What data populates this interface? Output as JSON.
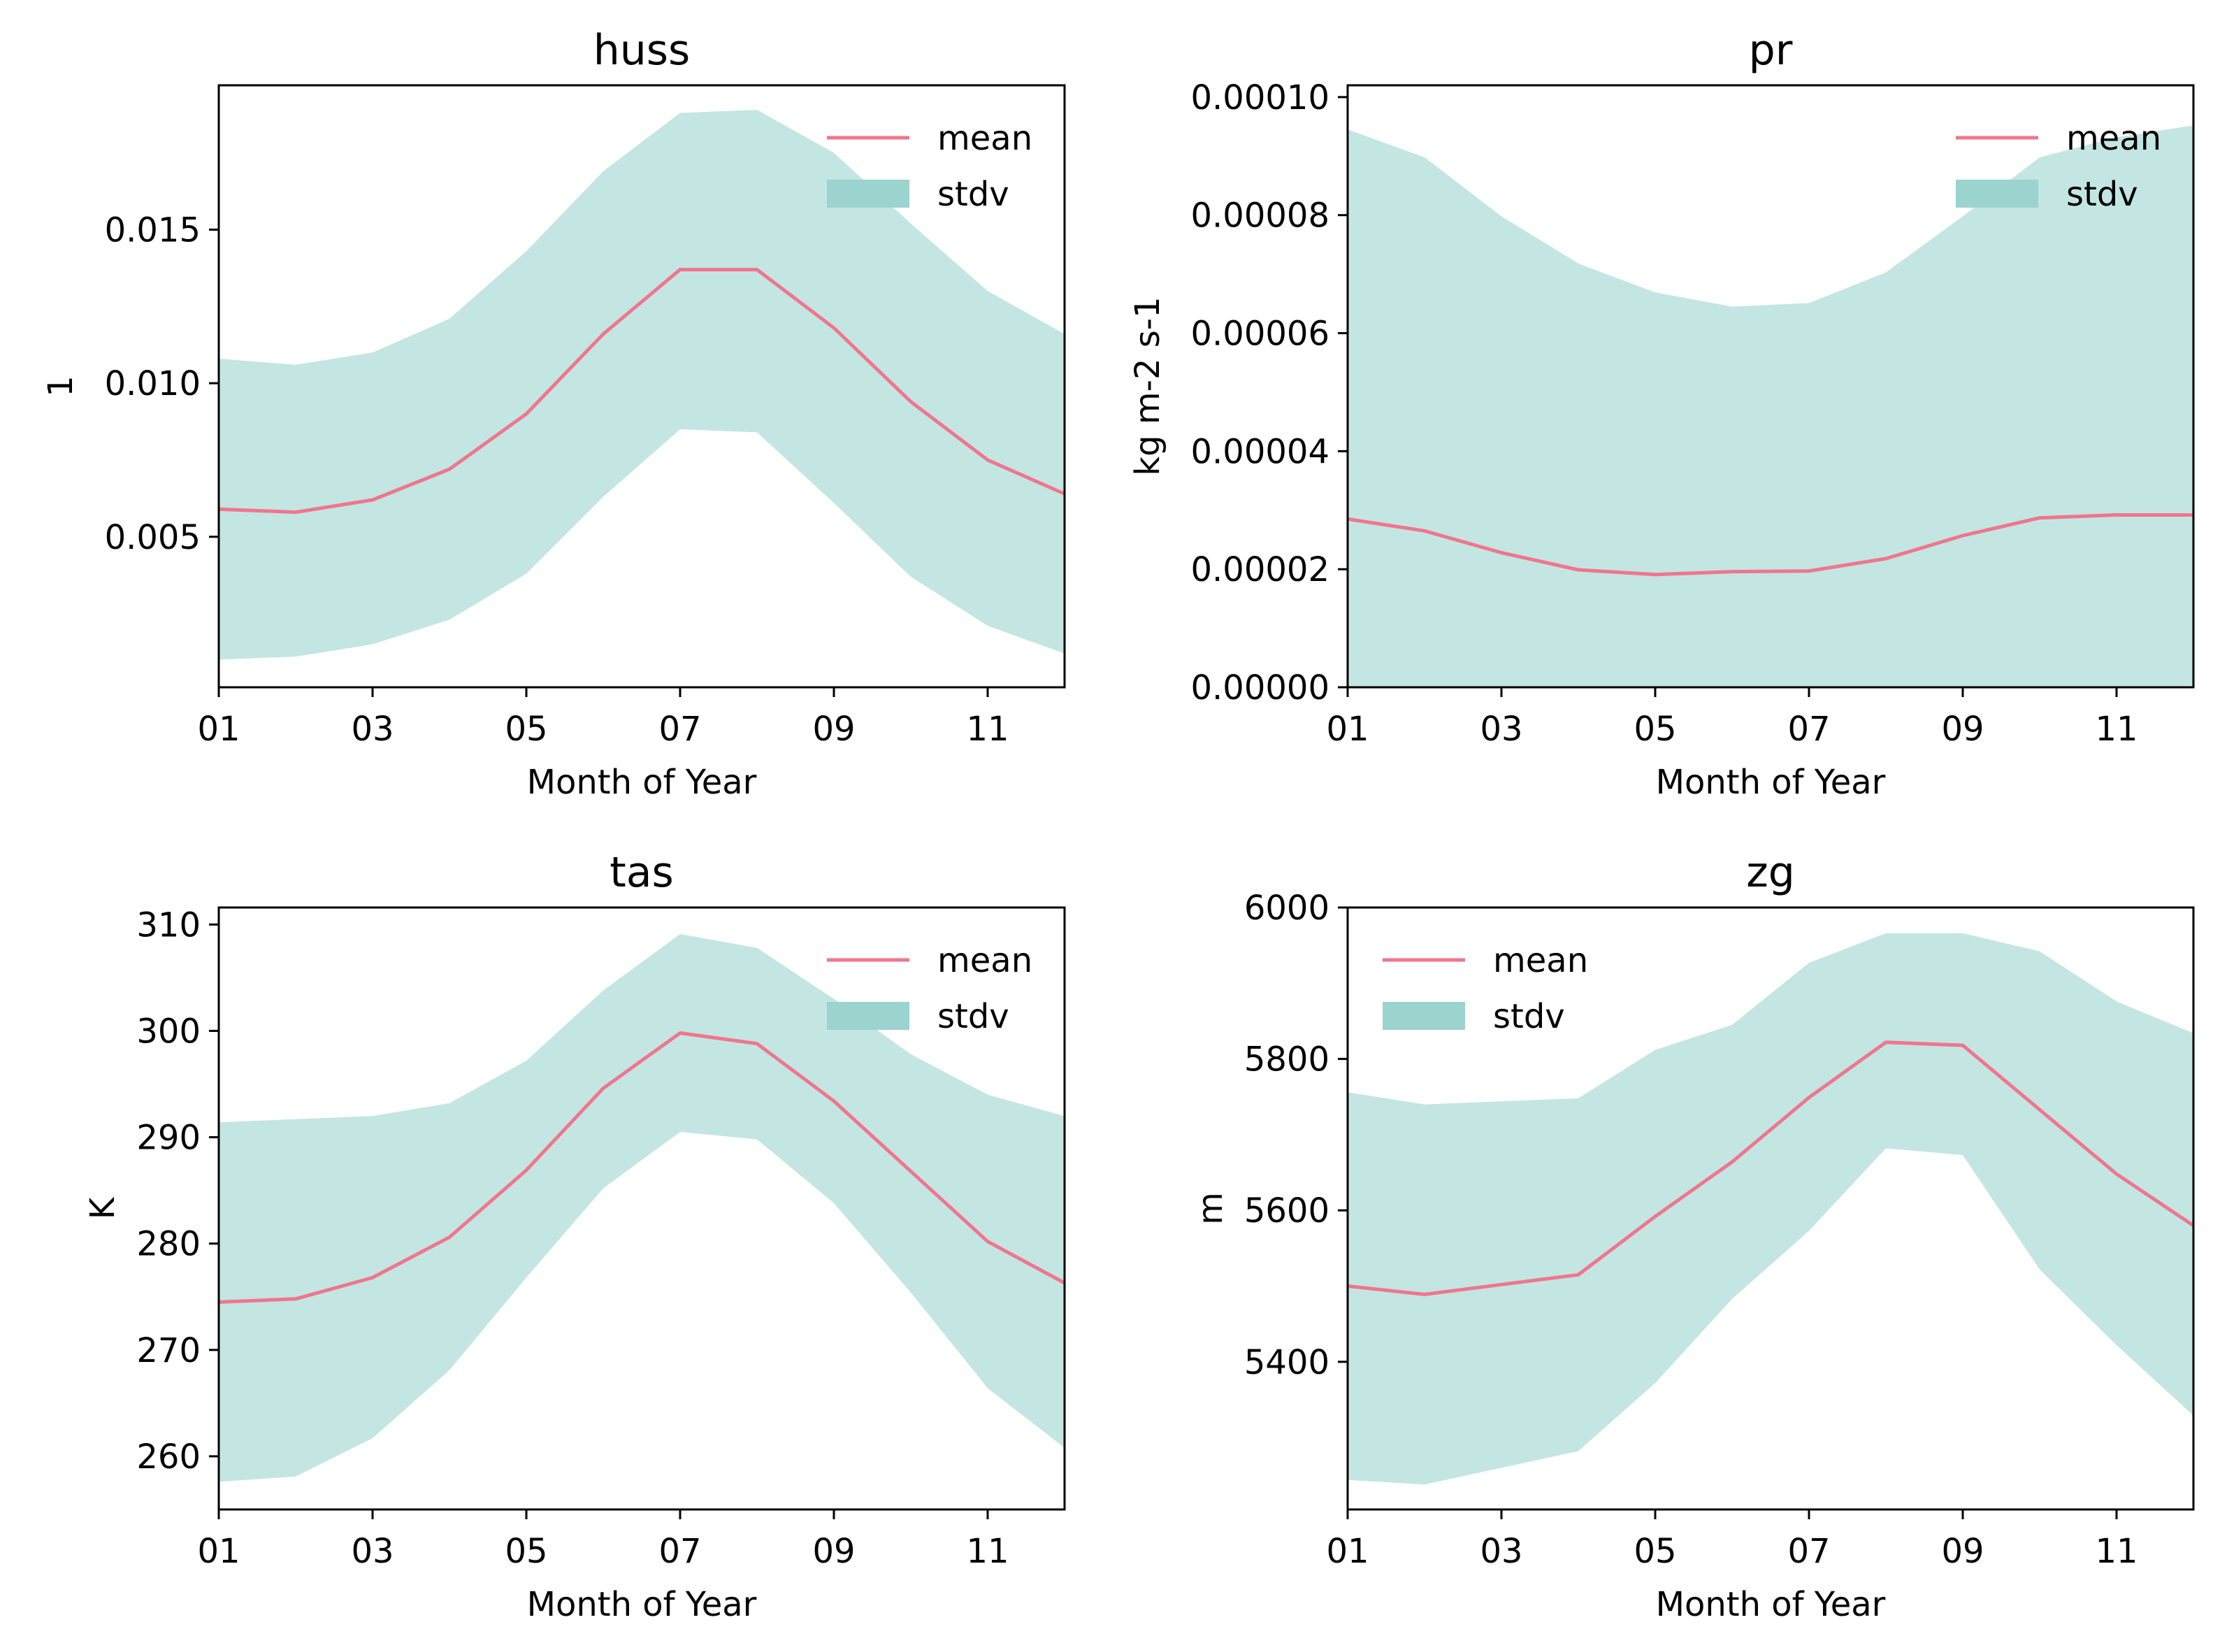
{
  "figure": {
    "background": "#ffffff",
    "mean_color": "#f0768c",
    "stdv_color": "#c3e6e3",
    "stdv_legend_color": "#9bd3ce"
  },
  "chart_data": [
    {
      "type": "area",
      "id": "huss",
      "title": "huss",
      "xlabel": "Month of Year",
      "ylabel": "1",
      "x": [
        1,
        2,
        3,
        4,
        5,
        6,
        7,
        8,
        9,
        10,
        11,
        12
      ],
      "xlim": [
        1,
        12
      ],
      "xticks": [
        1,
        3,
        5,
        7,
        9,
        11
      ],
      "xtick_labels": [
        "01",
        "03",
        "05",
        "07",
        "09",
        "11"
      ],
      "ylim": [
        0.0001,
        0.0197
      ],
      "yticks": [
        0.005,
        0.01,
        0.015
      ],
      "ytick_labels": [
        "0.005",
        "0.010",
        "0.015"
      ],
      "legend_position": "top-right",
      "series": [
        {
          "name": "mean",
          "kind": "line",
          "values": [
            0.0059,
            0.0058,
            0.0062,
            0.0072,
            0.009,
            0.0116,
            0.0137,
            0.0137,
            0.0118,
            0.0094,
            0.0075,
            0.0064
          ]
        },
        {
          "name": "stdv",
          "kind": "band",
          "upper": [
            0.0108,
            0.0106,
            0.011,
            0.0121,
            0.0143,
            0.0169,
            0.0188,
            0.0189,
            0.0175,
            0.0152,
            0.013,
            0.0116
          ],
          "lower": [
            0.001,
            0.0011,
            0.0015,
            0.0023,
            0.0038,
            0.0063,
            0.0085,
            0.0084,
            0.0061,
            0.0037,
            0.0021,
            0.0012
          ]
        }
      ],
      "legend": [
        "mean",
        "stdv"
      ]
    },
    {
      "type": "area",
      "id": "pr",
      "title": "pr",
      "xlabel": "Month of Year",
      "ylabel": "kg m-2 s-1",
      "x": [
        1,
        2,
        3,
        4,
        5,
        6,
        7,
        8,
        9,
        10,
        11,
        12
      ],
      "xlim": [
        1,
        12
      ],
      "xticks": [
        1,
        3,
        5,
        7,
        9,
        11
      ],
      "xtick_labels": [
        "01",
        "03",
        "05",
        "07",
        "09",
        "11"
      ],
      "ylim": [
        0,
        0.000102
      ],
      "yticks": [
        0,
        2e-05,
        4e-05,
        6e-05,
        8e-05,
        0.0001
      ],
      "ytick_labels": [
        "0.00000",
        "0.00002",
        "0.00004",
        "0.00006",
        "0.00008",
        "0.00010"
      ],
      "legend_position": "top-right",
      "series": [
        {
          "name": "mean",
          "kind": "line",
          "values": [
            2.85e-05,
            2.65e-05,
            2.28e-05,
            1.99e-05,
            1.91e-05,
            1.96e-05,
            1.97e-05,
            2.18e-05,
            2.57e-05,
            2.87e-05,
            2.92e-05,
            2.92e-05
          ]
        },
        {
          "name": "stdv",
          "kind": "band",
          "upper": [
            9.45e-05,
            8.98e-05,
            7.98e-05,
            7.18e-05,
            6.69e-05,
            6.45e-05,
            6.51e-05,
            7.03e-05,
            7.98e-05,
            8.98e-05,
            9.32e-05,
            9.52e-05
          ],
          "lower": [
            0,
            0,
            0,
            0,
            0,
            0,
            0,
            0,
            0,
            0,
            0,
            0
          ]
        }
      ],
      "legend": [
        "mean",
        "stdv"
      ]
    },
    {
      "type": "area",
      "id": "tas",
      "title": "tas",
      "xlabel": "Month of Year",
      "ylabel": "K",
      "x": [
        1,
        2,
        3,
        4,
        5,
        6,
        7,
        8,
        9,
        10,
        11,
        12
      ],
      "xlim": [
        1,
        12
      ],
      "xticks": [
        1,
        3,
        5,
        7,
        9,
        11
      ],
      "xtick_labels": [
        "01",
        "03",
        "05",
        "07",
        "09",
        "11"
      ],
      "ylim": [
        255,
        311.6
      ],
      "yticks": [
        260,
        270,
        280,
        290,
        300,
        310
      ],
      "ytick_labels": [
        "260",
        "270",
        "280",
        "290",
        "300",
        "310"
      ],
      "legend_position": "top-right",
      "series": [
        {
          "name": "mean",
          "kind": "line",
          "values": [
            274.5,
            274.8,
            276.8,
            280.6,
            286.9,
            294.6,
            299.8,
            298.8,
            293.4,
            286.8,
            280.2,
            276.3
          ]
        },
        {
          "name": "stdv",
          "kind": "band",
          "upper": [
            291.4,
            291.7,
            292.0,
            293.2,
            297.2,
            303.8,
            309.1,
            307.8,
            303.0,
            297.8,
            294.0,
            292.0
          ],
          "lower": [
            257.6,
            258.1,
            261.7,
            268.1,
            276.8,
            285.2,
            290.5,
            289.8,
            283.8,
            275.4,
            266.4,
            260.8
          ]
        }
      ],
      "legend": [
        "mean",
        "stdv"
      ]
    },
    {
      "type": "area",
      "id": "zg",
      "title": "zg",
      "xlabel": "Month of Year",
      "ylabel": "m",
      "x": [
        1,
        2,
        3,
        4,
        5,
        6,
        7,
        8,
        9,
        10,
        11,
        12
      ],
      "xlim": [
        1,
        12
      ],
      "xticks": [
        1,
        3,
        5,
        7,
        9,
        11
      ],
      "xtick_labels": [
        "01",
        "03",
        "05",
        "07",
        "09",
        "11"
      ],
      "ylim": [
        5205,
        6000
      ],
      "yticks": [
        5400,
        5600,
        5800,
        6000
      ],
      "ytick_labels": [
        "5400",
        "5600",
        "5800",
        "6000"
      ],
      "legend_position": "top-left",
      "series": [
        {
          "name": "mean",
          "kind": "line",
          "values": [
            5500,
            5489,
            5502,
            5515,
            5592,
            5664,
            5749,
            5822,
            5818,
            5733,
            5648,
            5580
          ]
        },
        {
          "name": "stdv",
          "kind": "band",
          "upper": [
            5756,
            5740,
            5744,
            5748,
            5812,
            5845,
            5927,
            5966,
            5966,
            5942,
            5876,
            5834
          ],
          "lower": [
            5244,
            5238,
            5260,
            5282,
            5372,
            5483,
            5573,
            5682,
            5673,
            5522,
            5422,
            5329
          ]
        }
      ],
      "legend": [
        "mean",
        "stdv"
      ]
    }
  ]
}
